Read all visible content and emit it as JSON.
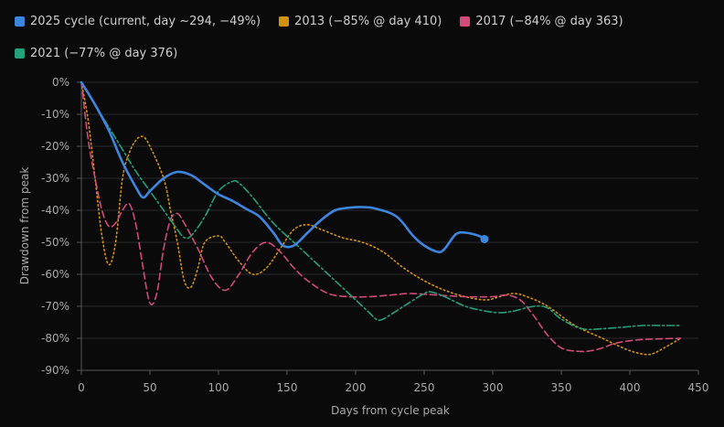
{
  "chart_data": {
    "type": "line",
    "title": "",
    "xlabel": "Days from cycle peak",
    "ylabel": "Drawdown from peak",
    "xlim": [
      0,
      450
    ],
    "ylim": [
      -90,
      0
    ],
    "xticks": [
      0,
      50,
      100,
      150,
      200,
      250,
      300,
      350,
      400,
      450
    ],
    "yticks": [
      0,
      -10,
      -20,
      -30,
      -40,
      -50,
      -60,
      -70,
      -80,
      -90
    ],
    "ytick_labels": [
      "0%",
      "-10%",
      "-20%",
      "-30%",
      "-40%",
      "-50%",
      "-60%",
      "-70%",
      "-80%",
      "-90%"
    ],
    "grid": "horizontal",
    "legend_position": "top",
    "series": [
      {
        "name": "2025 cycle (current, day ~294, −49%)",
        "color": "#3d86e0",
        "style": "solid",
        "end_marker": true,
        "points": [
          [
            0,
            0
          ],
          [
            10,
            -7
          ],
          [
            20,
            -15
          ],
          [
            30,
            -25
          ],
          [
            40,
            -33
          ],
          [
            45,
            -36
          ],
          [
            50,
            -34
          ],
          [
            60,
            -30
          ],
          [
            70,
            -28
          ],
          [
            80,
            -29
          ],
          [
            90,
            -32
          ],
          [
            100,
            -35
          ],
          [
            110,
            -37
          ],
          [
            120,
            -39.5
          ],
          [
            130,
            -42
          ],
          [
            140,
            -47
          ],
          [
            147,
            -51
          ],
          [
            155,
            -51
          ],
          [
            165,
            -47
          ],
          [
            175,
            -43
          ],
          [
            185,
            -40
          ],
          [
            195,
            -39.2
          ],
          [
            205,
            -39
          ],
          [
            215,
            -39.5
          ],
          [
            230,
            -42
          ],
          [
            242,
            -48
          ],
          [
            250,
            -51
          ],
          [
            260,
            -53
          ],
          [
            265,
            -52
          ],
          [
            273,
            -47.5
          ],
          [
            280,
            -47
          ],
          [
            290,
            -48
          ],
          [
            294,
            -49
          ]
        ]
      },
      {
        "name": "2013 (−85% @ day 410)",
        "color": "#d4920a",
        "style": "dotted",
        "points": [
          [
            0,
            0
          ],
          [
            5,
            -12
          ],
          [
            10,
            -30
          ],
          [
            15,
            -48
          ],
          [
            20,
            -57
          ],
          [
            25,
            -50
          ],
          [
            30,
            -30
          ],
          [
            35,
            -22
          ],
          [
            40,
            -18
          ],
          [
            45,
            -17
          ],
          [
            50,
            -20
          ],
          [
            60,
            -30
          ],
          [
            65,
            -40
          ],
          [
            70,
            -50
          ],
          [
            75,
            -62
          ],
          [
            80,
            -64
          ],
          [
            85,
            -58
          ],
          [
            90,
            -50
          ],
          [
            100,
            -48
          ],
          [
            105,
            -50
          ],
          [
            115,
            -56
          ],
          [
            125,
            -60
          ],
          [
            135,
            -58
          ],
          [
            145,
            -52
          ],
          [
            155,
            -46
          ],
          [
            165,
            -44.5
          ],
          [
            175,
            -46
          ],
          [
            190,
            -48.5
          ],
          [
            205,
            -50
          ],
          [
            220,
            -53
          ],
          [
            235,
            -58
          ],
          [
            250,
            -62
          ],
          [
            265,
            -65
          ],
          [
            280,
            -67
          ],
          [
            295,
            -68
          ],
          [
            305,
            -67
          ],
          [
            315,
            -66
          ],
          [
            325,
            -67
          ],
          [
            340,
            -70
          ],
          [
            360,
            -76
          ],
          [
            380,
            -80
          ],
          [
            395,
            -83
          ],
          [
            405,
            -84.5
          ],
          [
            415,
            -85
          ],
          [
            425,
            -83
          ],
          [
            437,
            -80
          ]
        ]
      },
      {
        "name": "2017 (−84% @ day 363)",
        "color": "#d44a7a",
        "style": "dashed",
        "points": [
          [
            0,
            0
          ],
          [
            5,
            -18
          ],
          [
            10,
            -30
          ],
          [
            15,
            -40
          ],
          [
            20,
            -45
          ],
          [
            25,
            -44
          ],
          [
            30,
            -40
          ],
          [
            35,
            -38
          ],
          [
            40,
            -45
          ],
          [
            45,
            -58
          ],
          [
            50,
            -69
          ],
          [
            55,
            -66
          ],
          [
            60,
            -52
          ],
          [
            65,
            -43
          ],
          [
            70,
            -41
          ],
          [
            75,
            -44
          ],
          [
            85,
            -52
          ],
          [
            95,
            -61
          ],
          [
            105,
            -65
          ],
          [
            115,
            -60
          ],
          [
            125,
            -53
          ],
          [
            135,
            -50
          ],
          [
            145,
            -53
          ],
          [
            155,
            -58
          ],
          [
            165,
            -62
          ],
          [
            180,
            -66
          ],
          [
            195,
            -67
          ],
          [
            210,
            -67
          ],
          [
            225,
            -66.5
          ],
          [
            240,
            -66
          ],
          [
            260,
            -66.5
          ],
          [
            280,
            -67
          ],
          [
            300,
            -67
          ],
          [
            310,
            -66.5
          ],
          [
            320,
            -68
          ],
          [
            330,
            -73
          ],
          [
            340,
            -79
          ],
          [
            350,
            -83
          ],
          [
            360,
            -84
          ],
          [
            370,
            -84
          ],
          [
            380,
            -83
          ],
          [
            390,
            -81.5
          ],
          [
            405,
            -80.5
          ],
          [
            420,
            -80.2
          ],
          [
            437,
            -80
          ]
        ]
      },
      {
        "name": "2021 (−77% @ day 376)",
        "color": "#24a07a",
        "style": "dashdot",
        "points": [
          [
            0,
            0
          ],
          [
            10,
            -7
          ],
          [
            20,
            -14
          ],
          [
            30,
            -21
          ],
          [
            40,
            -28
          ],
          [
            50,
            -34
          ],
          [
            60,
            -40
          ],
          [
            70,
            -46
          ],
          [
            75,
            -48.5
          ],
          [
            80,
            -48
          ],
          [
            90,
            -42
          ],
          [
            100,
            -34
          ],
          [
            110,
            -31
          ],
          [
            115,
            -31.5
          ],
          [
            125,
            -36
          ],
          [
            140,
            -44
          ],
          [
            160,
            -52
          ],
          [
            175,
            -58
          ],
          [
            190,
            -64
          ],
          [
            200,
            -68
          ],
          [
            210,
            -72
          ],
          [
            215,
            -74
          ],
          [
            220,
            -74
          ],
          [
            235,
            -70
          ],
          [
            250,
            -66
          ],
          [
            255,
            -65.5
          ],
          [
            265,
            -67
          ],
          [
            280,
            -70
          ],
          [
            295,
            -71.5
          ],
          [
            305,
            -72
          ],
          [
            315,
            -71.5
          ],
          [
            330,
            -70
          ],
          [
            340,
            -70.5
          ],
          [
            350,
            -74
          ],
          [
            365,
            -77
          ],
          [
            380,
            -77
          ],
          [
            395,
            -76.5
          ],
          [
            410,
            -76
          ],
          [
            425,
            -76
          ],
          [
            437,
            -76
          ]
        ]
      }
    ]
  }
}
